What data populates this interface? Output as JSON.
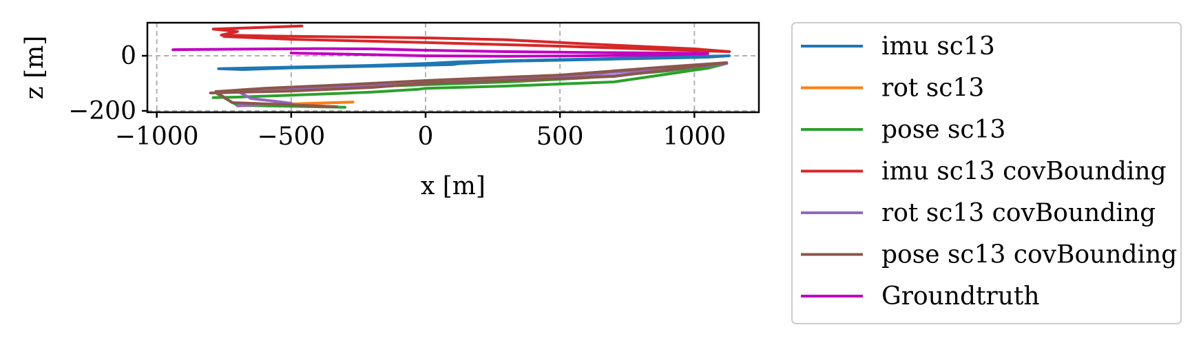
{
  "chart_data": {
    "type": "line",
    "title": "",
    "xlabel": "x [m]",
    "ylabel": "z [m]",
    "xlim": [
      -1035,
      1240
    ],
    "ylim": [
      -205,
      120
    ],
    "xticks": [
      -1000,
      -500,
      0,
      500,
      1000
    ],
    "xtick_labels": [
      "−1000",
      "−500",
      "0",
      "500",
      "1000"
    ],
    "yticks": [
      -200,
      0
    ],
    "ytick_labels": [
      "−200",
      "0"
    ],
    "grid": true,
    "grid_style": "dashed",
    "legend_placement": "outside-right",
    "series": [
      {
        "name": "imu sc13",
        "color": "#1f77b4",
        "x": [
          -770,
          -680,
          -530,
          -200,
          0,
          130,
          300,
          600,
          900,
          1050,
          1130,
          1050,
          700,
          300,
          130,
          100,
          -200,
          -500,
          -680,
          -770
        ],
        "y": [
          -47,
          -45,
          -42,
          -35,
          -28,
          -22,
          -18,
          -12,
          -5,
          -2,
          0,
          -5,
          -12,
          -20,
          -28,
          -32,
          -38,
          -44,
          -50,
          -47
        ]
      },
      {
        "name": "rot sc13",
        "color": "#ff7f0e",
        "x": [
          -700,
          -500,
          -270,
          -500,
          -700
        ],
        "y": [
          -182,
          -175,
          -168,
          -175,
          -182
        ]
      },
      {
        "name": "pose sc13",
        "color": "#2ca02c",
        "x": [
          -790,
          -700,
          -500,
          -200,
          -30,
          0,
          300,
          700,
          1050,
          1120,
          900,
          600,
          300,
          0,
          -300,
          -600,
          -780,
          -700,
          -300
        ],
        "y": [
          -152,
          -150,
          -143,
          -132,
          -122,
          -118,
          -110,
          -95,
          -45,
          -28,
          -55,
          -80,
          -95,
          -105,
          -115,
          -125,
          -135,
          -180,
          -187
        ]
      },
      {
        "name": "imu sc13 covBounding",
        "color": "#d62728",
        "x": [
          -460,
          -700,
          -790,
          -700,
          -760,
          -600,
          0,
          300,
          600,
          1000,
          1130,
          900,
          500,
          0,
          -500,
          -750
        ],
        "y": [
          108,
          100,
          97,
          88,
          75,
          72,
          65,
          58,
          43,
          25,
          15,
          22,
          35,
          48,
          60,
          70
        ]
      },
      {
        "name": "rot sc13 covBounding",
        "color": "#9467bd",
        "x": [
          -780,
          -500,
          -200,
          0,
          300,
          700,
          1120,
          900,
          500,
          0,
          -400,
          -700,
          -650,
          -500,
          -700
        ],
        "y": [
          -130,
          -125,
          -112,
          -97,
          -88,
          -72,
          -28,
          -45,
          -75,
          -95,
          -110,
          -128,
          -155,
          -172,
          -182
        ]
      },
      {
        "name": "pose sc13 covBounding",
        "color": "#8c564b",
        "x": [
          -800,
          -500,
          -200,
          0,
          300,
          700,
          1120,
          900,
          500,
          0,
          -300,
          -600,
          -780,
          -720,
          -500,
          -330
        ],
        "y": [
          -135,
          -128,
          -115,
          -100,
          -90,
          -75,
          -25,
          -40,
          -70,
          -90,
          -105,
          -118,
          -130,
          -170,
          -178,
          -185
        ]
      },
      {
        "name": "Groundtruth",
        "color": "#c000c0",
        "x": [
          -940,
          -700,
          -400,
          -200,
          0,
          300,
          600,
          900,
          1050,
          900,
          600,
          300,
          0,
          -300,
          -500
        ],
        "y": [
          22,
          24,
          26,
          25,
          20,
          15,
          12,
          10,
          8,
          3,
          0,
          -2,
          0,
          6,
          10
        ]
      }
    ]
  }
}
